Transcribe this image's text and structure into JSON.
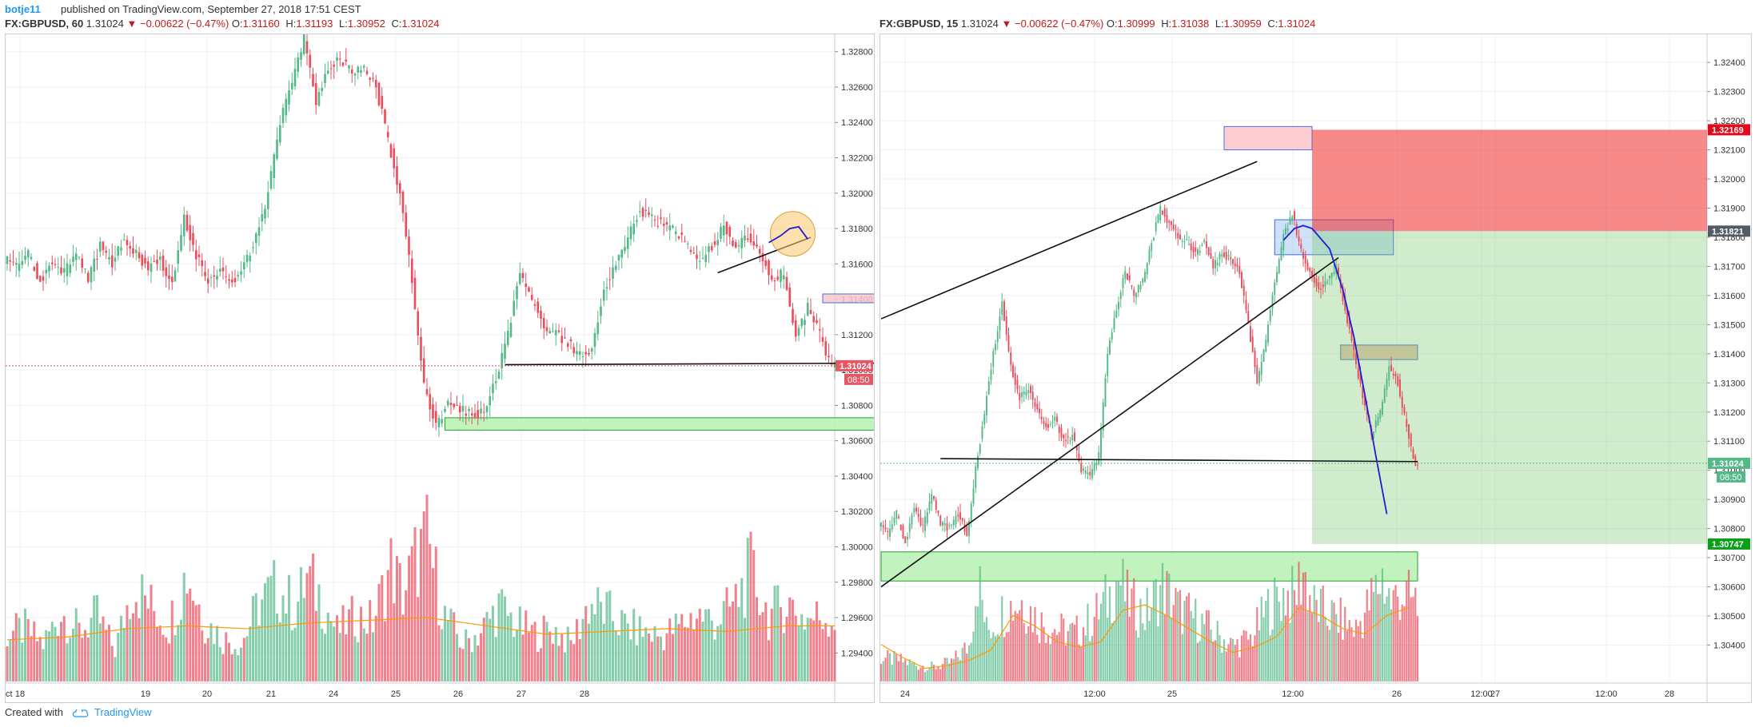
{
  "header": {
    "author": "botje11",
    "published": "published on TradingView.com, September 27, 2018 17:51 CEST"
  },
  "left_legend": {
    "symbol": "FX:GBPUSD, 60",
    "last": "1.31024",
    "change": "▼ −0.00622 (−0.47%)",
    "o_label": "O:",
    "o": "1.31160",
    "h_label": "H:",
    "h": "1.31193",
    "l_label": "L:",
    "l": "1.30952",
    "c_label": "C:",
    "c": "1.31024"
  },
  "right_legend": {
    "symbol": "FX:GBPUSD, 15",
    "last": "1.31024",
    "change": "▼ −0.00622 (−0.47%)",
    "o_label": "O:",
    "o": "1.30999",
    "h_label": "H:",
    "h": "1.31038",
    "l_label": "L:",
    "l": "1.30959",
    "c_label": "C:",
    "c": "1.31024"
  },
  "footer": {
    "created_with": "Created with",
    "brand": "TradingView"
  },
  "colors": {
    "up": "#53b987",
    "down": "#eb4d5c",
    "volume_ma": "#ff9800",
    "blue_path": "#1d1dd6"
  },
  "chart_data": [
    {
      "type": "candlestick",
      "symbol": "FX:GBPUSD",
      "interval": "60",
      "y_ticks": [
        "1.32800",
        "1.32600",
        "1.32400",
        "1.32200",
        "1.32000",
        "1.31800",
        "1.31600",
        "1.31400",
        "1.31200",
        "1.31000",
        "1.30800",
        "1.30600",
        "1.30400",
        "1.30200",
        "1.30000",
        "1.29800",
        "1.29600",
        "1.29400"
      ],
      "x_ticks": [
        "18",
        "19",
        "20",
        "21",
        "24",
        "25",
        "26",
        "27",
        "28",
        "Oct"
      ],
      "price_label": "1.31024",
      "countdown": "08:50",
      "ylim": [
        1.2932,
        1.3288
      ],
      "price_path": [
        [
          0,
          1.3163
        ],
        [
          4,
          1.3158
        ],
        [
          8,
          1.3165
        ],
        [
          12,
          1.315
        ],
        [
          16,
          1.3162
        ],
        [
          20,
          1.3155
        ],
        [
          24,
          1.3166
        ],
        [
          28,
          1.3152
        ],
        [
          32,
          1.317
        ],
        [
          36,
          1.316
        ],
        [
          40,
          1.3175
        ],
        [
          44,
          1.3165
        ],
        [
          48,
          1.3158
        ],
        [
          52,
          1.3162
        ],
        [
          56,
          1.315
        ],
        [
          60,
          1.3185
        ],
        [
          64,
          1.3165
        ],
        [
          68,
          1.315
        ],
        [
          72,
          1.3155
        ],
        [
          76,
          1.315
        ],
        [
          80,
          1.316
        ],
        [
          84,
          1.3175
        ],
        [
          88,
          1.32
        ],
        [
          92,
          1.324
        ],
        [
          96,
          1.3262
        ],
        [
          100,
          1.3288
        ],
        [
          104,
          1.325
        ],
        [
          108,
          1.327
        ],
        [
          112,
          1.3275
        ],
        [
          116,
          1.3268
        ],
        [
          120,
          1.327
        ],
        [
          124,
          1.326
        ],
        [
          128,
          1.323
        ],
        [
          132,
          1.32
        ],
        [
          136,
          1.315
        ],
        [
          140,
          1.309
        ],
        [
          144,
          1.307
        ],
        [
          148,
          1.308
        ],
        [
          152,
          1.3078
        ],
        [
          156,
          1.3076
        ],
        [
          160,
          1.3075
        ],
        [
          164,
          1.3095
        ],
        [
          168,
          1.312
        ],
        [
          172,
          1.3155
        ],
        [
          176,
          1.314
        ],
        [
          180,
          1.3125
        ],
        [
          184,
          1.312
        ],
        [
          188,
          1.3115
        ],
        [
          192,
          1.3108
        ],
        [
          196,
          1.3112
        ],
        [
          200,
          1.3145
        ],
        [
          204,
          1.316
        ],
        [
          208,
          1.3175
        ],
        [
          212,
          1.319
        ],
        [
          216,
          1.3185
        ],
        [
          220,
          1.3182
        ],
        [
          224,
          1.3178
        ],
        [
          228,
          1.317
        ],
        [
          232,
          1.316
        ],
        [
          236,
          1.317
        ],
        [
          240,
          1.3182
        ],
        [
          244,
          1.317
        ],
        [
          248,
          1.3175
        ],
        [
          252,
          1.3168
        ],
        [
          256,
          1.315
        ],
        [
          260,
          1.3155
        ],
        [
          264,
          1.312
        ],
        [
          268,
          1.3135
        ],
        [
          272,
          1.312
        ],
        [
          276,
          1.3102
        ]
      ],
      "volume_path": [
        [
          0,
          38
        ],
        [
          6,
          42
        ],
        [
          12,
          30
        ],
        [
          18,
          55
        ],
        [
          24,
          40
        ],
        [
          30,
          52
        ],
        [
          36,
          25
        ],
        [
          42,
          78
        ],
        [
          48,
          60
        ],
        [
          54,
          45
        ],
        [
          60,
          88
        ],
        [
          66,
          48
        ],
        [
          72,
          34
        ],
        [
          78,
          30
        ],
        [
          84,
          62
        ],
        [
          90,
          75
        ],
        [
          96,
          58
        ],
        [
          100,
          82
        ],
        [
          104,
          70
        ],
        [
          110,
          40
        ],
        [
          116,
          52
        ],
        [
          122,
          48
        ],
        [
          128,
          92
        ],
        [
          132,
          70
        ],
        [
          136,
          96
        ],
        [
          140,
          112
        ],
        [
          146,
          52
        ],
        [
          152,
          30
        ],
        [
          158,
          40
        ],
        [
          164,
          60
        ],
        [
          170,
          45
        ],
        [
          176,
          38
        ],
        [
          182,
          42
        ],
        [
          188,
          30
        ],
        [
          194,
          62
        ],
        [
          200,
          55
        ],
        [
          206,
          44
        ],
        [
          212,
          40
        ],
        [
          218,
          36
        ],
        [
          224,
          44
        ],
        [
          230,
          54
        ],
        [
          236,
          48
        ],
        [
          242,
          60
        ],
        [
          248,
          88
        ],
        [
          254,
          52
        ],
        [
          260,
          64
        ],
        [
          266,
          50
        ],
        [
          272,
          52
        ],
        [
          276,
          50
        ]
      ],
      "volume_ma_path": [
        [
          0,
          30
        ],
        [
          20,
          32
        ],
        [
          40,
          38
        ],
        [
          60,
          40
        ],
        [
          80,
          38
        ],
        [
          100,
          42
        ],
        [
          120,
          44
        ],
        [
          140,
          46
        ],
        [
          160,
          40
        ],
        [
          180,
          34
        ],
        [
          200,
          36
        ],
        [
          220,
          38
        ],
        [
          240,
          36
        ],
        [
          260,
          40
        ],
        [
          276,
          40
        ]
      ],
      "drawings": [
        {
          "kind": "support-line",
          "from": [
            166,
            1.3103
          ],
          "to": [
            306,
            1.3104
          ]
        },
        {
          "kind": "zone",
          "color": "green",
          "x": [
            146,
            304
          ],
          "y": [
            1.3066,
            1.3073
          ]
        },
        {
          "kind": "zone",
          "color": "red",
          "x": [
            272,
            308
          ],
          "y": [
            1.3138,
            1.3143
          ]
        },
        {
          "kind": "trend-line",
          "from": [
            237,
            1.3155
          ],
          "to": [
            268,
            1.3175
          ]
        },
        {
          "kind": "circle-highlight",
          "x": 262,
          "y": 1.3177
        },
        {
          "kind": "blue-path",
          "points": [
            [
              254,
              1.3172
            ],
            [
              258,
              1.3176
            ],
            [
              261,
              1.318
            ],
            [
              264,
              1.3181
            ],
            [
              267,
              1.3174
            ]
          ]
        }
      ]
    },
    {
      "type": "candlestick",
      "symbol": "FX:GBPUSD",
      "interval": "15",
      "y_ticks": [
        "1.32400",
        "1.32300",
        "1.32200",
        "1.32100",
        "1.32000",
        "1.31900",
        "1.31800",
        "1.31700",
        "1.31600",
        "1.31500",
        "1.31400",
        "1.31300",
        "1.31200",
        "1.31100",
        "1.31000",
        "1.30900",
        "1.30800",
        "1.30700",
        "1.30600",
        "1.30500",
        "1.30400"
      ],
      "x_ticks": [
        "24",
        "12:00",
        "25",
        "12:00",
        "26",
        "12:00",
        "27",
        "12:00",
        "28"
      ],
      "price_label": "1.31024",
      "countdown": "08:50",
      "target_label": "1.32169",
      "entry_label": "1.31821",
      "stop_label": "1.30747",
      "ylim": [
        1.3033,
        1.3248
      ],
      "price_path": [
        [
          0,
          1.3082
        ],
        [
          4,
          1.3078
        ],
        [
          8,
          1.3085
        ],
        [
          12,
          1.3075
        ],
        [
          16,
          1.3088
        ],
        [
          20,
          1.308
        ],
        [
          24,
          1.3092
        ],
        [
          28,
          1.3082
        ],
        [
          32,
          1.308
        ],
        [
          36,
          1.3085
        ],
        [
          40,
          1.3078
        ],
        [
          44,
          1.31
        ],
        [
          48,
          1.312
        ],
        [
          52,
          1.314
        ],
        [
          56,
          1.3158
        ],
        [
          60,
          1.3135
        ],
        [
          64,
          1.3125
        ],
        [
          68,
          1.3128
        ],
        [
          72,
          1.312
        ],
        [
          76,
          1.3115
        ],
        [
          80,
          1.3118
        ],
        [
          84,
          1.311
        ],
        [
          88,
          1.3112
        ],
        [
          92,
          1.31
        ],
        [
          96,
          1.3098
        ],
        [
          100,
          1.3105
        ],
        [
          104,
          1.314
        ],
        [
          108,
          1.3155
        ],
        [
          112,
          1.3168
        ],
        [
          116,
          1.316
        ],
        [
          120,
          1.3165
        ],
        [
          124,
          1.3178
        ],
        [
          128,
          1.319
        ],
        [
          132,
          1.3185
        ],
        [
          136,
          1.318
        ],
        [
          140,
          1.3178
        ],
        [
          144,
          1.3175
        ],
        [
          148,
          1.3178
        ],
        [
          152,
          1.317
        ],
        [
          156,
          1.3175
        ],
        [
          160,
          1.3172
        ],
        [
          164,
          1.3168
        ],
        [
          168,
          1.315
        ],
        [
          172,
          1.313
        ],
        [
          176,
          1.3145
        ],
        [
          180,
          1.3165
        ],
        [
          184,
          1.318
        ],
        [
          188,
          1.3188
        ],
        [
          192,
          1.3175
        ],
        [
          196,
          1.3168
        ],
        [
          200,
          1.3162
        ],
        [
          204,
          1.3165
        ],
        [
          208,
          1.317
        ],
        [
          212,
          1.3155
        ],
        [
          216,
          1.314
        ],
        [
          220,
          1.3125
        ],
        [
          224,
          1.3112
        ],
        [
          228,
          1.312
        ],
        [
          232,
          1.3135
        ],
        [
          236,
          1.313
        ],
        [
          240,
          1.3115
        ],
        [
          244,
          1.3102
        ]
      ],
      "volume_path": [
        [
          0,
          20
        ],
        [
          8,
          18
        ],
        [
          16,
          14
        ],
        [
          24,
          12
        ],
        [
          32,
          16
        ],
        [
          40,
          30
        ],
        [
          44,
          90
        ],
        [
          48,
          42
        ],
        [
          56,
          60
        ],
        [
          64,
          68
        ],
        [
          72,
          50
        ],
        [
          80,
          44
        ],
        [
          88,
          40
        ],
        [
          96,
          52
        ],
        [
          104,
          72
        ],
        [
          108,
          88
        ],
        [
          112,
          68
        ],
        [
          120,
          56
        ],
        [
          128,
          80
        ],
        [
          136,
          60
        ],
        [
          144,
          52
        ],
        [
          152,
          40
        ],
        [
          160,
          30
        ],
        [
          168,
          36
        ],
        [
          176,
          62
        ],
        [
          184,
          74
        ],
        [
          188,
          70
        ],
        [
          192,
          94
        ],
        [
          196,
          64
        ],
        [
          200,
          60
        ],
        [
          208,
          52
        ],
        [
          216,
          44
        ],
        [
          224,
          72
        ],
        [
          228,
          88
        ],
        [
          232,
          66
        ],
        [
          236,
          74
        ],
        [
          240,
          70
        ],
        [
          244,
          64
        ]
      ],
      "volume_ma_path": [
        [
          0,
          28
        ],
        [
          10,
          18
        ],
        [
          20,
          10
        ],
        [
          30,
          12
        ],
        [
          40,
          16
        ],
        [
          50,
          24
        ],
        [
          60,
          50
        ],
        [
          70,
          42
        ],
        [
          80,
          30
        ],
        [
          90,
          26
        ],
        [
          100,
          30
        ],
        [
          110,
          54
        ],
        [
          120,
          58
        ],
        [
          130,
          50
        ],
        [
          140,
          40
        ],
        [
          150,
          30
        ],
        [
          160,
          22
        ],
        [
          170,
          26
        ],
        [
          180,
          34
        ],
        [
          190,
          56
        ],
        [
          200,
          50
        ],
        [
          210,
          40
        ],
        [
          220,
          36
        ],
        [
          230,
          50
        ],
        [
          240,
          56
        ]
      ],
      "drawings": [
        {
          "kind": "trend-line",
          "from": [
            0,
            1.3152
          ],
          "to": [
            171,
            1.3206
          ]
        },
        {
          "kind": "trend-line",
          "from": [
            0,
            1.306
          ],
          "to": [
            208,
            1.3173
          ]
        },
        {
          "kind": "support-line",
          "from": [
            27,
            1.3104
          ],
          "to": [
            244,
            1.3103
          ]
        },
        {
          "kind": "zone",
          "color": "green",
          "x": [
            0,
            244
          ],
          "y": [
            1.3062,
            1.3072
          ]
        },
        {
          "kind": "zone",
          "color": "pink",
          "x": [
            156,
            196
          ],
          "y": [
            1.321,
            1.3218
          ]
        },
        {
          "kind": "zone",
          "color": "light-blue",
          "x": [
            179,
            233
          ],
          "y": [
            1.3174,
            1.3186
          ]
        },
        {
          "kind": "zone",
          "color": "tan",
          "x": [
            209,
            244
          ],
          "y": [
            1.3138,
            1.3143
          ]
        },
        {
          "kind": "position",
          "target": 1.32169,
          "entry": 1.31821,
          "stop": 1.30747,
          "x": [
            196,
            244
          ]
        },
        {
          "kind": "blue-path",
          "points": [
            [
              183,
              1.3179
            ],
            [
              188,
              1.3183
            ],
            [
              192,
              1.3184
            ],
            [
              196,
              1.3183
            ],
            [
              204,
              1.3176
            ],
            [
              210,
              1.3162
            ],
            [
              215,
              1.3146
            ],
            [
              220,
              1.3126
            ],
            [
              225,
              1.3105
            ],
            [
              230,
              1.3085
            ]
          ]
        }
      ]
    }
  ]
}
